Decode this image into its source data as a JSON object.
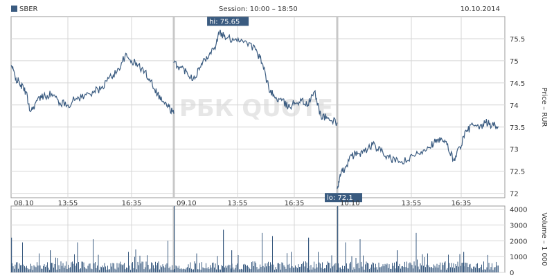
{
  "header": {
    "symbol": "SBER",
    "session": "Session: 10:00 – 18:50",
    "date": "10.10.2014"
  },
  "watermark": "РБК QUOTE",
  "colors": {
    "series": "#3a5b80",
    "grid": "#d6d6d6",
    "frame": "#9a9a9a",
    "separator": "#c8c8c8",
    "label_bg": "#3a5b80"
  },
  "chart_data": [
    {
      "type": "line",
      "ylabel": "Price – RUR",
      "y_ticks": [
        "75.5",
        "75",
        "74.5",
        "74",
        "73.5",
        "73",
        "72.5",
        "72"
      ],
      "ylim": [
        71.9,
        76.0
      ],
      "day_labels": [
        "08.10",
        "09.10",
        "10.10"
      ],
      "time_labels": [
        "13:55",
        "16:35",
        "13:55",
        "16:35",
        "13:55",
        "16:35"
      ],
      "annotations": [
        {
          "label": "hi: 75.65",
          "day": 1,
          "t": 0.28,
          "value": 75.65
        },
        {
          "label": "lo: 72.1",
          "day": 2,
          "t": 0.0,
          "value": 72.1
        }
      ],
      "days": [
        {
          "label": "08.10",
          "points": [
            [
              0,
              74.9
            ],
            [
              0.03,
              74.6
            ],
            [
              0.06,
              74.45
            ],
            [
              0.09,
              74.3
            ],
            [
              0.12,
              73.85
            ],
            [
              0.16,
              74.1
            ],
            [
              0.2,
              74.2
            ],
            [
              0.25,
              74.25
            ],
            [
              0.3,
              74.05
            ],
            [
              0.35,
              74.0
            ],
            [
              0.4,
              74.15
            ],
            [
              0.45,
              74.2
            ],
            [
              0.5,
              74.3
            ],
            [
              0.55,
              74.35
            ],
            [
              0.6,
              74.6
            ],
            [
              0.65,
              74.75
            ],
            [
              0.7,
              75.1
            ],
            [
              0.74,
              75.0
            ],
            [
              0.78,
              74.9
            ],
            [
              0.82,
              74.75
            ],
            [
              0.86,
              74.55
            ],
            [
              0.9,
              74.25
            ],
            [
              0.94,
              74.05
            ],
            [
              0.97,
              73.95
            ],
            [
              1.0,
              73.8
            ]
          ]
        },
        {
          "label": "09.10",
          "points": [
            [
              0,
              74.95
            ],
            [
              0.04,
              74.85
            ],
            [
              0.08,
              74.75
            ],
            [
              0.12,
              74.6
            ],
            [
              0.16,
              74.85
            ],
            [
              0.2,
              75.1
            ],
            [
              0.25,
              75.3
            ],
            [
              0.28,
              75.65
            ],
            [
              0.32,
              75.5
            ],
            [
              0.38,
              75.5
            ],
            [
              0.44,
              75.45
            ],
            [
              0.5,
              75.25
            ],
            [
              0.54,
              74.95
            ],
            [
              0.58,
              74.4
            ],
            [
              0.62,
              74.15
            ],
            [
              0.66,
              74.1
            ],
            [
              0.7,
              73.95
            ],
            [
              0.74,
              74.05
            ],
            [
              0.78,
              74.1
            ],
            [
              0.82,
              74.0
            ],
            [
              0.86,
              74.3
            ],
            [
              0.9,
              73.75
            ],
            [
              0.94,
              73.7
            ],
            [
              1.0,
              73.6
            ]
          ]
        },
        {
          "label": "10.10",
          "points": [
            [
              0,
              72.1
            ],
            [
              0.02,
              72.4
            ],
            [
              0.05,
              72.6
            ],
            [
              0.09,
              72.85
            ],
            [
              0.13,
              72.9
            ],
            [
              0.17,
              72.95
            ],
            [
              0.22,
              73.1
            ],
            [
              0.27,
              72.95
            ],
            [
              0.32,
              72.8
            ],
            [
              0.38,
              72.7
            ],
            [
              0.44,
              72.75
            ],
            [
              0.5,
              72.9
            ],
            [
              0.56,
              73.05
            ],
            [
              0.6,
              73.15
            ],
            [
              0.64,
              73.2
            ],
            [
              0.68,
              73.1
            ],
            [
              0.72,
              72.75
            ],
            [
              0.76,
              73.05
            ],
            [
              0.8,
              73.4
            ],
            [
              0.84,
              73.55
            ],
            [
              0.88,
              73.45
            ],
            [
              0.92,
              73.6
            ],
            [
              0.96,
              73.55
            ],
            [
              1.0,
              73.5
            ]
          ]
        }
      ]
    },
    {
      "type": "bar",
      "ylabel": "Volume – 1 000",
      "y_ticks": [
        "4000",
        "3000",
        "2000",
        "1000",
        "0"
      ],
      "ylim": [
        0,
        4200
      ],
      "typical_volume": [
        150,
        700
      ],
      "spikes": [
        {
          "day": 0,
          "t": 0.0,
          "value": 2200
        },
        {
          "day": 0,
          "t": 0.07,
          "value": 1900
        },
        {
          "day": 0,
          "t": 0.17,
          "value": 1200
        },
        {
          "day": 0,
          "t": 0.24,
          "value": 1400
        },
        {
          "day": 0,
          "t": 0.41,
          "value": 1900
        },
        {
          "day": 0,
          "t": 0.5,
          "value": 2100
        },
        {
          "day": 0,
          "t": 0.72,
          "value": 1300
        },
        {
          "day": 0,
          "t": 0.96,
          "value": 2000
        },
        {
          "day": 1,
          "t": 0.0,
          "value": 4200
        },
        {
          "day": 1,
          "t": 0.14,
          "value": 1200
        },
        {
          "day": 1,
          "t": 0.3,
          "value": 2700
        },
        {
          "day": 1,
          "t": 0.35,
          "value": 1400
        },
        {
          "day": 1,
          "t": 0.54,
          "value": 2500
        },
        {
          "day": 1,
          "t": 0.6,
          "value": 2300
        },
        {
          "day": 1,
          "t": 0.82,
          "value": 2200
        },
        {
          "day": 1,
          "t": 0.88,
          "value": 1300
        },
        {
          "day": 2,
          "t": 0.0,
          "value": 4400
        },
        {
          "day": 2,
          "t": 0.05,
          "value": 1900
        },
        {
          "day": 2,
          "t": 0.14,
          "value": 2100
        },
        {
          "day": 2,
          "t": 0.37,
          "value": 1400
        },
        {
          "day": 2,
          "t": 0.49,
          "value": 2500
        },
        {
          "day": 2,
          "t": 0.56,
          "value": 1200
        },
        {
          "day": 2,
          "t": 0.78,
          "value": 1300
        },
        {
          "day": 2,
          "t": 0.93,
          "value": 1100
        }
      ]
    }
  ]
}
